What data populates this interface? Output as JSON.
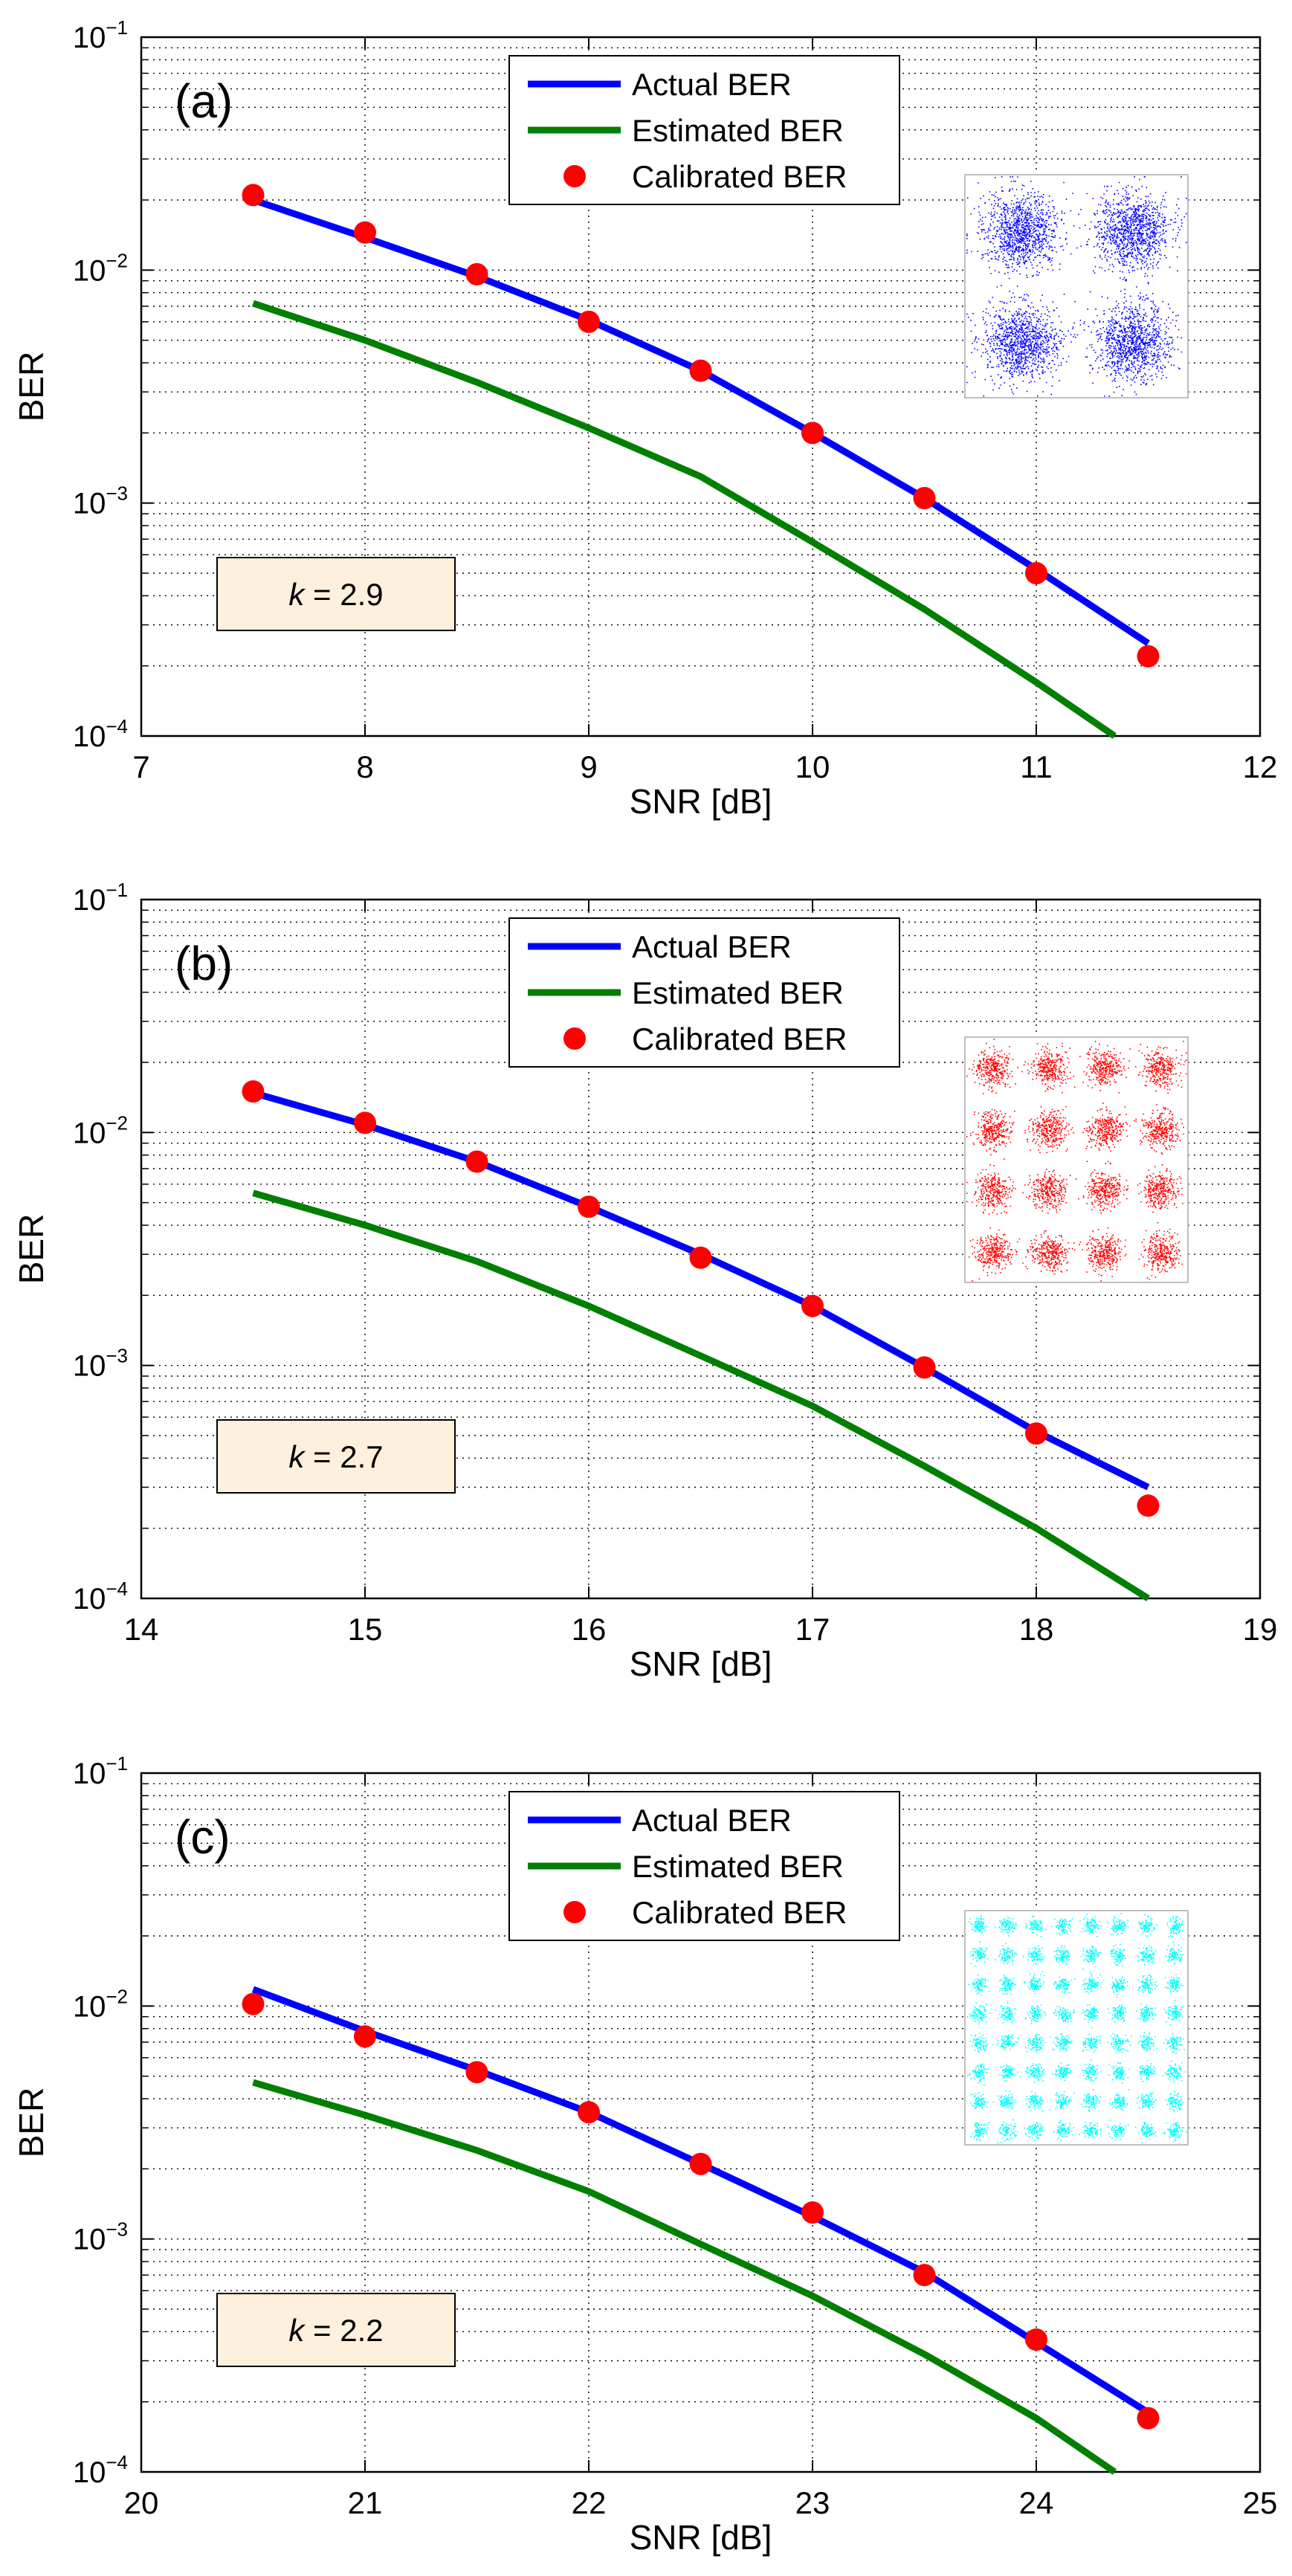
{
  "colors": {
    "actual": "#0000ff",
    "estimated": "#007f00",
    "calibrated": "#ff0000",
    "annotation_bg": "#fdf0dc",
    "constellation_a": "#0000ff",
    "constellation_b": "#ff0000",
    "constellation_c": "#00ffff"
  },
  "legend_labels": [
    "Actual BER",
    "Estimated BER",
    "Calibrated BER"
  ],
  "chart_data": [
    {
      "type": "line",
      "panel_label": "(a)",
      "xlabel": "SNR [dB]",
      "ylabel": "BER",
      "yscale": "log",
      "xlim": [
        7,
        12
      ],
      "ylim": [
        0.0001,
        0.1
      ],
      "xticks": [
        "7",
        "8",
        "9",
        "10",
        "11",
        "12"
      ],
      "annotation": {
        "var": "k",
        "text": " = 2.9"
      },
      "legend_location": "top-center",
      "grid": true,
      "inset": {
        "type": "constellation",
        "order": 4,
        "color": "blue"
      },
      "series": [
        {
          "name": "Actual BER",
          "style": "line",
          "x": [
            7.5,
            8,
            8.5,
            9,
            9.5,
            10,
            10.5,
            11,
            11.5
          ],
          "y": [
            0.02,
            0.0138,
            0.0094,
            0.0061,
            0.0037,
            0.002,
            0.00105,
            0.00052,
            0.00025
          ]
        },
        {
          "name": "Estimated BER",
          "style": "line",
          "x": [
            7.5,
            8,
            8.5,
            9,
            9.5,
            10,
            10.5,
            11,
            11.35
          ],
          "y": [
            0.0072,
            0.005,
            0.0033,
            0.0021,
            0.0013,
            0.00068,
            0.00035,
            0.00017,
            0.0001
          ]
        },
        {
          "name": "Calibrated BER",
          "style": "marker",
          "x": [
            7.5,
            8,
            8.5,
            9,
            9.5,
            10,
            10.5,
            11,
            11.5
          ],
          "y": [
            0.021,
            0.0145,
            0.0096,
            0.006,
            0.0037,
            0.002,
            0.00105,
            0.0005,
            0.00022
          ]
        }
      ]
    },
    {
      "type": "line",
      "panel_label": "(b)",
      "xlabel": "SNR [dB]",
      "ylabel": "BER",
      "yscale": "log",
      "xlim": [
        14,
        19
      ],
      "ylim": [
        0.0001,
        0.1
      ],
      "xticks": [
        "14",
        "15",
        "16",
        "17",
        "18",
        "19"
      ],
      "annotation": {
        "var": "k",
        "text": " = 2.7"
      },
      "legend_location": "top-center",
      "grid": true,
      "inset": {
        "type": "constellation",
        "order": 16,
        "color": "red"
      },
      "series": [
        {
          "name": "Actual BER",
          "style": "line",
          "x": [
            14.5,
            15,
            15.5,
            16,
            16.5,
            17,
            17.5,
            18,
            18.5
          ],
          "y": [
            0.0148,
            0.0108,
            0.0075,
            0.0048,
            0.003,
            0.0018,
            0.00098,
            0.00052,
            0.0003
          ]
        },
        {
          "name": "Estimated BER",
          "style": "line",
          "x": [
            14.5,
            15,
            15.5,
            16,
            16.5,
            17,
            17.5,
            18,
            18.5
          ],
          "y": [
            0.0055,
            0.004,
            0.0028,
            0.0018,
            0.0011,
            0.00067,
            0.00037,
            0.0002,
            0.0001
          ]
        },
        {
          "name": "Calibrated BER",
          "style": "marker",
          "x": [
            14.5,
            15,
            15.5,
            16,
            16.5,
            17,
            17.5,
            18,
            18.5
          ],
          "y": [
            0.015,
            0.011,
            0.0075,
            0.0048,
            0.0029,
            0.0018,
            0.00098,
            0.00051,
            0.00025
          ]
        }
      ]
    },
    {
      "type": "line",
      "panel_label": "(c)",
      "xlabel": "SNR [dB]",
      "ylabel": "BER",
      "yscale": "log",
      "xlim": [
        20,
        25
      ],
      "ylim": [
        0.0001,
        0.1
      ],
      "xticks": [
        "20",
        "21",
        "22",
        "23",
        "24",
        "25"
      ],
      "annotation": {
        "var": "k",
        "text": " = 2.2"
      },
      "legend_location": "top-center",
      "grid": true,
      "inset": {
        "type": "constellation",
        "order": 64,
        "color": "cyan"
      },
      "series": [
        {
          "name": "Actual BER",
          "style": "line",
          "x": [
            20.5,
            21,
            21.5,
            22,
            22.5,
            23,
            23.5,
            24,
            24.5
          ],
          "y": [
            0.0118,
            0.0078,
            0.0053,
            0.0035,
            0.0021,
            0.00125,
            0.00072,
            0.00036,
            0.00018
          ]
        },
        {
          "name": "Estimated BER",
          "style": "line",
          "x": [
            20.5,
            21,
            21.5,
            22,
            22.5,
            23,
            23.5,
            24,
            24.35
          ],
          "y": [
            0.0047,
            0.0034,
            0.0024,
            0.0016,
            0.00095,
            0.00057,
            0.00032,
            0.00017,
            0.0001
          ]
        },
        {
          "name": "Calibrated BER",
          "style": "marker",
          "x": [
            20.5,
            21,
            21.5,
            22,
            22.5,
            23,
            23.5,
            24,
            24.5
          ],
          "y": [
            0.0102,
            0.0074,
            0.0052,
            0.0035,
            0.0021,
            0.0013,
            0.0007,
            0.00037,
            0.00017
          ]
        }
      ]
    }
  ]
}
